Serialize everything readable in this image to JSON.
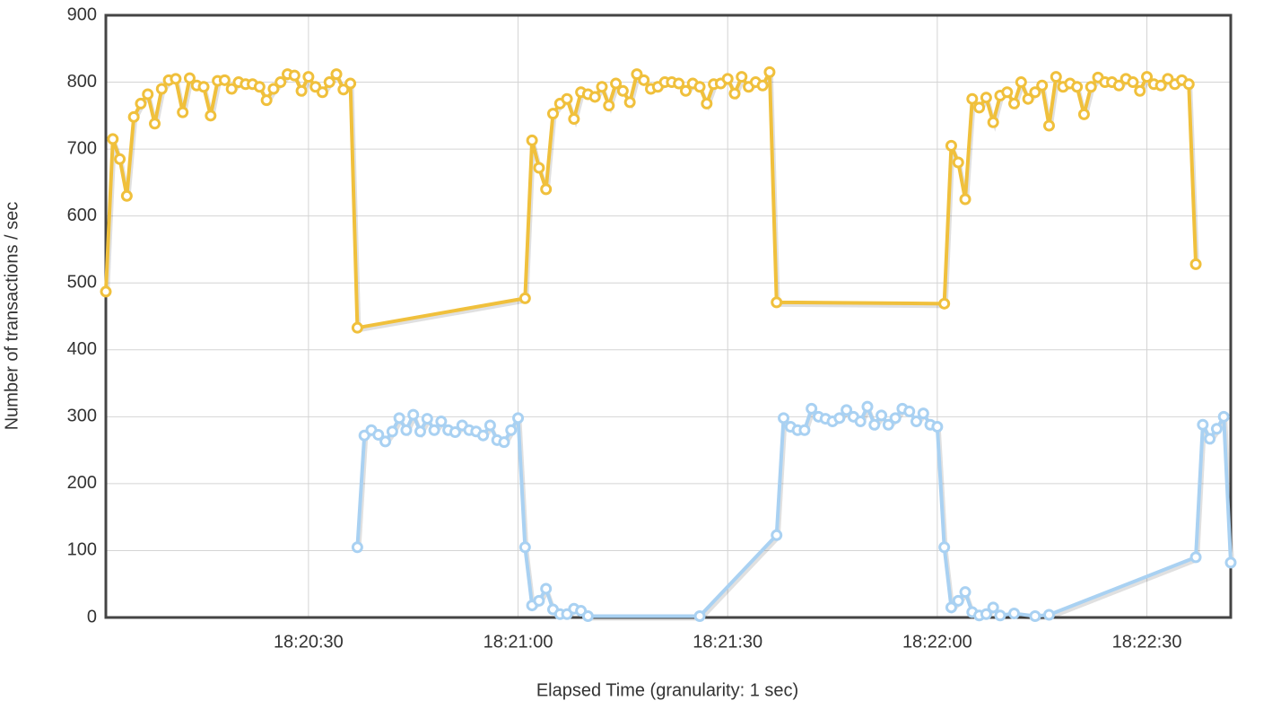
{
  "chart_data": {
    "type": "line",
    "x_label": "Elapsed Time (granularity: 1 sec)",
    "y_label": "Number of transactions / sec",
    "xlim": [
      "18:20:01",
      "18:22:42"
    ],
    "xticks": [
      "18:20:30",
      "18:21:00",
      "18:21:30",
      "18:22:00",
      "18:22:30"
    ],
    "ylim": [
      0,
      900
    ],
    "yticks": [
      0,
      100,
      200,
      300,
      400,
      500,
      600,
      700,
      800,
      900
    ],
    "grid": true,
    "series": [
      {
        "color": "#f0c03c",
        "x": [
          "18:20:01",
          "18:20:02",
          "18:20:03",
          "18:20:04",
          "18:20:05",
          "18:20:06",
          "18:20:07",
          "18:20:08",
          "18:20:09",
          "18:20:10",
          "18:20:11",
          "18:20:12",
          "18:20:13",
          "18:20:14",
          "18:20:15",
          "18:20:16",
          "18:20:17",
          "18:20:18",
          "18:20:19",
          "18:20:20",
          "18:20:21",
          "18:20:22",
          "18:20:23",
          "18:20:24",
          "18:20:25",
          "18:20:26",
          "18:20:27",
          "18:20:28",
          "18:20:29",
          "18:20:30",
          "18:20:31",
          "18:20:32",
          "18:20:33",
          "18:20:34",
          "18:20:35",
          "18:20:36",
          "18:20:37",
          "18:21:01",
          "18:21:02",
          "18:21:03",
          "18:21:04",
          "18:21:05",
          "18:21:06",
          "18:21:07",
          "18:21:08",
          "18:21:09",
          "18:21:10",
          "18:21:11",
          "18:21:12",
          "18:21:13",
          "18:21:14",
          "18:21:15",
          "18:21:16",
          "18:21:17",
          "18:21:18",
          "18:21:19",
          "18:21:20",
          "18:21:21",
          "18:21:22",
          "18:21:23",
          "18:21:24",
          "18:21:25",
          "18:21:26",
          "18:21:27",
          "18:21:28",
          "18:21:29",
          "18:21:30",
          "18:21:31",
          "18:21:32",
          "18:21:33",
          "18:21:34",
          "18:21:35",
          "18:21:36",
          "18:21:37",
          "18:22:01",
          "18:22:02",
          "18:22:03",
          "18:22:04",
          "18:22:05",
          "18:22:06",
          "18:22:07",
          "18:22:08",
          "18:22:09",
          "18:22:10",
          "18:22:11",
          "18:22:12",
          "18:22:13",
          "18:22:14",
          "18:22:15",
          "18:22:16",
          "18:22:17",
          "18:22:18",
          "18:22:19",
          "18:22:20",
          "18:22:21",
          "18:22:22",
          "18:22:23",
          "18:22:24",
          "18:22:25",
          "18:22:26",
          "18:22:27",
          "18:22:28",
          "18:22:29",
          "18:22:30",
          "18:22:31",
          "18:22:32",
          "18:22:33",
          "18:22:34",
          "18:22:35",
          "18:22:36",
          "18:22:37"
        ],
        "values": [
          487,
          715,
          685,
          630,
          748,
          768,
          782,
          738,
          790,
          803,
          805,
          755,
          806,
          795,
          793,
          750,
          802,
          803,
          790,
          800,
          797,
          797,
          793,
          773,
          790,
          800,
          812,
          810,
          787,
          808,
          793,
          785,
          800,
          812,
          789,
          798,
          433,
          477,
          713,
          672,
          640,
          753,
          768,
          775,
          745,
          785,
          782,
          778,
          793,
          765,
          798,
          787,
          770,
          812,
          803,
          790,
          793,
          800,
          800,
          798,
          787,
          798,
          793,
          768,
          797,
          798,
          805,
          783,
          808,
          793,
          800,
          795,
          815,
          471,
          469,
          705,
          680,
          625,
          775,
          762,
          777,
          740,
          780,
          785,
          768,
          800,
          775,
          785,
          795,
          735,
          808,
          793,
          798,
          793,
          752,
          793,
          807,
          800,
          800,
          795,
          805,
          800,
          787,
          808,
          797,
          795,
          805,
          797,
          803,
          797,
          528
        ]
      },
      {
        "color": "#a9d1f2",
        "x": [
          "18:20:37",
          "18:20:38",
          "18:20:39",
          "18:20:40",
          "18:20:41",
          "18:20:42",
          "18:20:43",
          "18:20:44",
          "18:20:45",
          "18:20:46",
          "18:20:47",
          "18:20:48",
          "18:20:49",
          "18:20:50",
          "18:20:51",
          "18:20:52",
          "18:20:53",
          "18:20:54",
          "18:20:55",
          "18:20:56",
          "18:20:57",
          "18:20:58",
          "18:20:59",
          "18:21:00",
          "18:21:01",
          "18:21:02",
          "18:21:03",
          "18:21:04",
          "18:21:05",
          "18:21:06",
          "18:21:07",
          "18:21:08",
          "18:21:09",
          "18:21:10",
          "18:21:26",
          "18:21:37",
          "18:21:38",
          "18:21:39",
          "18:21:40",
          "18:21:41",
          "18:21:42",
          "18:21:43",
          "18:21:44",
          "18:21:45",
          "18:21:46",
          "18:21:47",
          "18:21:48",
          "18:21:49",
          "18:21:50",
          "18:21:51",
          "18:21:52",
          "18:21:53",
          "18:21:54",
          "18:21:55",
          "18:21:56",
          "18:21:57",
          "18:21:58",
          "18:21:59",
          "18:22:00",
          "18:22:01",
          "18:22:02",
          "18:22:03",
          "18:22:04",
          "18:22:05",
          "18:22:06",
          "18:22:07",
          "18:22:08",
          "18:22:09",
          "18:22:11",
          "18:22:14",
          "18:22:16",
          "18:22:37",
          "18:22:38",
          "18:22:39",
          "18:22:40",
          "18:22:41",
          "18:22:42"
        ],
        "values": [
          105,
          272,
          280,
          273,
          263,
          278,
          298,
          280,
          303,
          278,
          297,
          280,
          293,
          280,
          277,
          287,
          280,
          278,
          272,
          287,
          265,
          262,
          280,
          298,
          105,
          18,
          25,
          43,
          12,
          5,
          5,
          13,
          10,
          2,
          2,
          123,
          298,
          285,
          280,
          280,
          312,
          300,
          297,
          293,
          298,
          310,
          300,
          293,
          315,
          288,
          302,
          288,
          298,
          312,
          308,
          293,
          305,
          288,
          285,
          105,
          15,
          25,
          38,
          8,
          3,
          5,
          15,
          3,
          6,
          2,
          4,
          90,
          288,
          267,
          282,
          300,
          82
        ]
      }
    ]
  }
}
